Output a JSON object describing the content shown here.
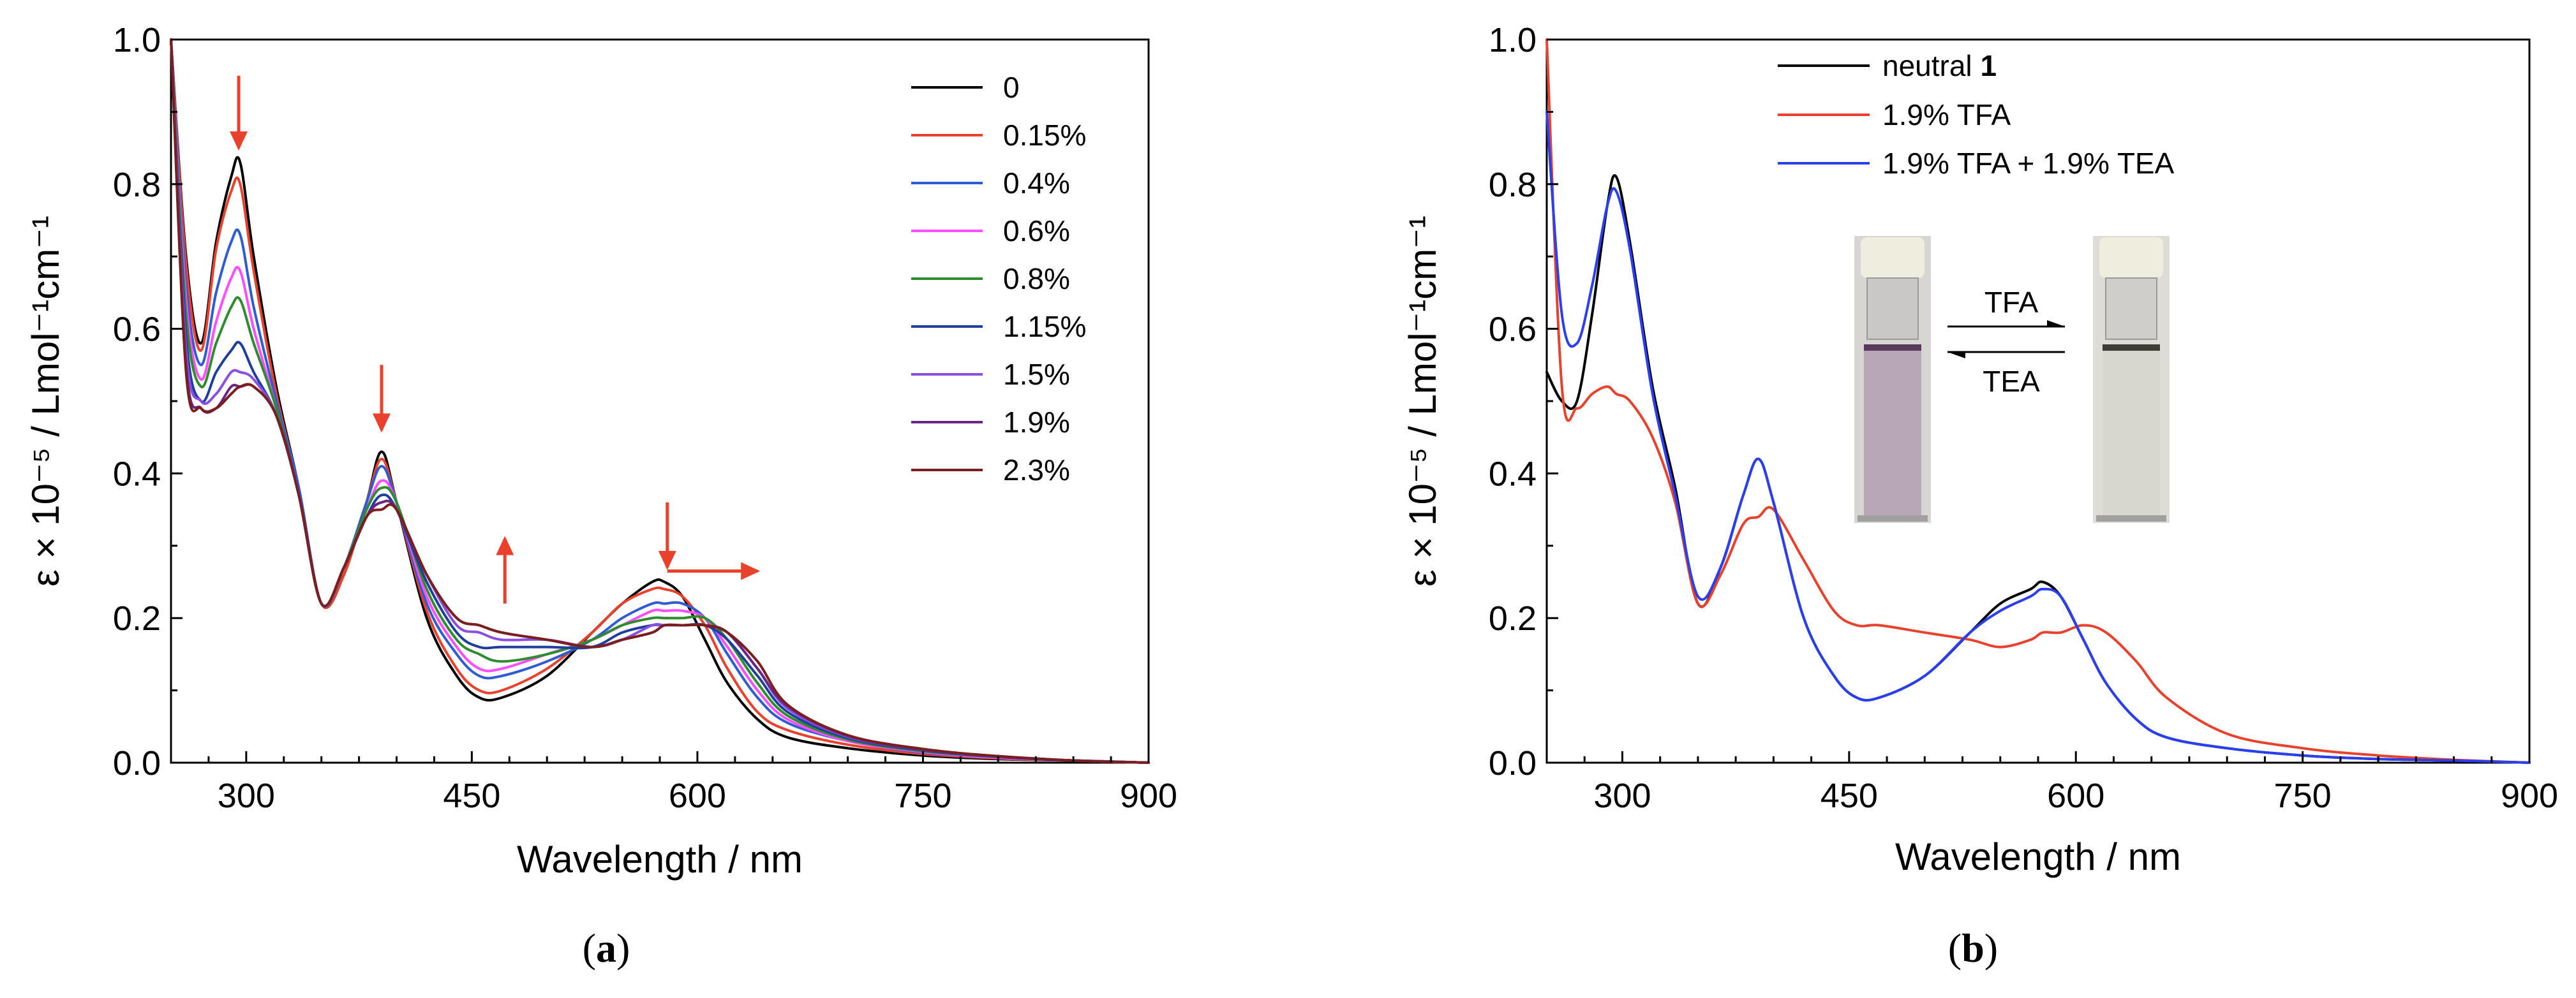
{
  "colors": {
    "axis": "#000000",
    "arrow": "#e8412c",
    "cuvette_left_liquid": "#b8a7b7",
    "cuvette_right_liquid": "#d7d6cf"
  },
  "chart_data": [
    {
      "type": "line",
      "panel_label": "a",
      "xlabel": "Wavelength / nm",
      "ylabel": "ε × 10⁻⁵ / Lmol⁻¹cm⁻¹",
      "xlim": [
        250,
        900
      ],
      "ylim": [
        0.0,
        1.0
      ],
      "xticks": [
        300,
        450,
        600,
        750,
        900
      ],
      "yticks": [
        0.0,
        0.2,
        0.4,
        0.6,
        0.8,
        1.0
      ],
      "ytick_labels": [
        "0.0",
        "0.2",
        "0.4",
        "0.6",
        "0.8",
        "1.0"
      ],
      "grid": false,
      "legend_position": "top-right",
      "x": [
        250,
        260,
        270,
        280,
        290,
        296,
        305,
        320,
        335,
        350,
        365,
        380,
        390,
        400,
        420,
        440,
        455,
        470,
        500,
        530,
        550,
        570,
        578,
        590,
        605,
        620,
        640,
        660,
        700,
        750,
        800,
        850,
        900
      ],
      "series": [
        {
          "name": "0",
          "color": "#000000",
          "values": [
            1.0,
            0.7,
            0.58,
            0.72,
            0.81,
            0.83,
            0.7,
            0.52,
            0.38,
            0.22,
            0.26,
            0.36,
            0.43,
            0.36,
            0.2,
            0.12,
            0.09,
            0.09,
            0.12,
            0.18,
            0.22,
            0.25,
            0.25,
            0.23,
            0.17,
            0.11,
            0.06,
            0.035,
            0.02,
            0.01,
            0.005,
            0.003,
            0.0
          ]
        },
        {
          "name": "0.15%",
          "color": "#e8412c",
          "values": [
            1.0,
            0.69,
            0.57,
            0.71,
            0.79,
            0.8,
            0.68,
            0.51,
            0.38,
            0.22,
            0.26,
            0.36,
            0.42,
            0.36,
            0.21,
            0.13,
            0.1,
            0.1,
            0.13,
            0.18,
            0.22,
            0.24,
            0.24,
            0.23,
            0.19,
            0.13,
            0.07,
            0.045,
            0.025,
            0.012,
            0.006,
            0.003,
            0.0
          ]
        },
        {
          "name": "0.4%",
          "color": "#2f5bd3",
          "values": [
            1.0,
            0.66,
            0.55,
            0.65,
            0.72,
            0.73,
            0.63,
            0.5,
            0.38,
            0.22,
            0.27,
            0.36,
            0.41,
            0.36,
            0.22,
            0.15,
            0.12,
            0.12,
            0.14,
            0.17,
            0.2,
            0.22,
            0.22,
            0.22,
            0.2,
            0.15,
            0.09,
            0.055,
            0.03,
            0.014,
            0.007,
            0.003,
            0.0
          ]
        },
        {
          "name": "0.6%",
          "color": "#ff4dff",
          "values": [
            1.0,
            0.64,
            0.53,
            0.61,
            0.67,
            0.68,
            0.6,
            0.49,
            0.37,
            0.22,
            0.27,
            0.35,
            0.39,
            0.36,
            0.23,
            0.16,
            0.13,
            0.13,
            0.15,
            0.17,
            0.19,
            0.21,
            0.21,
            0.21,
            0.2,
            0.16,
            0.1,
            0.06,
            0.03,
            0.015,
            0.007,
            0.003,
            0.0
          ]
        },
        {
          "name": "0.8%",
          "color": "#2e8b2e",
          "values": [
            1.0,
            0.62,
            0.52,
            0.58,
            0.63,
            0.64,
            0.58,
            0.49,
            0.37,
            0.22,
            0.27,
            0.35,
            0.38,
            0.36,
            0.24,
            0.17,
            0.15,
            0.14,
            0.15,
            0.17,
            0.19,
            0.2,
            0.2,
            0.2,
            0.2,
            0.17,
            0.11,
            0.065,
            0.032,
            0.016,
            0.008,
            0.003,
            0.0
          ]
        },
        {
          "name": "1.15%",
          "color": "#1f3f9c",
          "values": [
            1.0,
            0.59,
            0.5,
            0.54,
            0.57,
            0.58,
            0.54,
            0.48,
            0.37,
            0.22,
            0.27,
            0.34,
            0.37,
            0.35,
            0.25,
            0.18,
            0.16,
            0.16,
            0.16,
            0.16,
            0.18,
            0.19,
            0.19,
            0.19,
            0.19,
            0.17,
            0.12,
            0.07,
            0.034,
            0.017,
            0.008,
            0.003,
            0.0
          ]
        },
        {
          "name": "1.5%",
          "color": "#8a4ee0",
          "values": [
            1.0,
            0.57,
            0.5,
            0.51,
            0.54,
            0.54,
            0.53,
            0.48,
            0.37,
            0.22,
            0.27,
            0.34,
            0.36,
            0.35,
            0.26,
            0.19,
            0.18,
            0.17,
            0.17,
            0.16,
            0.17,
            0.19,
            0.19,
            0.19,
            0.19,
            0.18,
            0.13,
            0.075,
            0.036,
            0.018,
            0.009,
            0.003,
            0.0
          ]
        },
        {
          "name": "1.9%",
          "color": "#6a2585",
          "values": [
            1.0,
            0.55,
            0.49,
            0.49,
            0.52,
            0.52,
            0.52,
            0.48,
            0.37,
            0.22,
            0.27,
            0.34,
            0.36,
            0.35,
            0.26,
            0.2,
            0.19,
            0.18,
            0.17,
            0.16,
            0.17,
            0.18,
            0.19,
            0.19,
            0.19,
            0.18,
            0.13,
            0.078,
            0.037,
            0.018,
            0.009,
            0.003,
            0.0
          ]
        },
        {
          "name": "2.3%",
          "color": "#7a1e1e",
          "values": [
            1.0,
            0.54,
            0.49,
            0.49,
            0.51,
            0.52,
            0.52,
            0.48,
            0.37,
            0.22,
            0.27,
            0.34,
            0.35,
            0.35,
            0.26,
            0.2,
            0.19,
            0.18,
            0.17,
            0.16,
            0.17,
            0.18,
            0.19,
            0.19,
            0.19,
            0.18,
            0.14,
            0.08,
            0.038,
            0.019,
            0.009,
            0.003,
            0.0
          ]
        }
      ],
      "annotations": [
        {
          "kind": "arrow-down",
          "x": 295,
          "y_from": 0.95,
          "y_to": 0.85
        },
        {
          "kind": "arrow-down",
          "x": 390,
          "y_from": 0.55,
          "y_to": 0.46
        },
        {
          "kind": "arrow-up",
          "x": 472,
          "y_from": 0.22,
          "y_to": 0.31
        },
        {
          "kind": "arrow-down",
          "x": 580,
          "y_from": 0.36,
          "y_to": 0.27
        },
        {
          "kind": "arrow-right",
          "x_from": 580,
          "x_to": 640,
          "y": 0.265
        }
      ]
    },
    {
      "type": "line",
      "panel_label": "b",
      "xlabel": "Wavelength / nm",
      "ylabel": "ε × 10⁻⁵ / Lmol⁻¹cm⁻¹",
      "xlim": [
        250,
        900
      ],
      "ylim": [
        0.0,
        1.0
      ],
      "xticks": [
        300,
        450,
        600,
        750,
        900
      ],
      "yticks": [
        0.0,
        0.2,
        0.4,
        0.6,
        0.8,
        1.0
      ],
      "ytick_labels": [
        "0.0",
        "0.2",
        "0.4",
        "0.6",
        "0.8",
        "1.0"
      ],
      "grid": false,
      "legend_position": "top-left",
      "x": [
        250,
        260,
        270,
        280,
        290,
        296,
        305,
        320,
        335,
        350,
        365,
        380,
        390,
        400,
        420,
        440,
        455,
        470,
        500,
        530,
        550,
        570,
        578,
        590,
        605,
        620,
        640,
        660,
        700,
        750,
        800,
        850,
        900
      ],
      "series": [
        {
          "name_plain": "neutral ",
          "name_bold": "1",
          "color": "#000000",
          "values": [
            0.54,
            0.5,
            0.5,
            0.62,
            0.77,
            0.81,
            0.72,
            0.52,
            0.38,
            0.22,
            0.27,
            0.37,
            0.42,
            0.36,
            0.2,
            0.12,
            0.09,
            0.09,
            0.12,
            0.18,
            0.22,
            0.24,
            0.25,
            0.23,
            0.17,
            0.11,
            0.06,
            0.035,
            0.02,
            0.01,
            0.005,
            0.003,
            0.0
          ]
        },
        {
          "name_plain": "1.9% TFA",
          "name_bold": "",
          "color": "#e8412c",
          "values": [
            1.0,
            0.52,
            0.49,
            0.51,
            0.52,
            0.51,
            0.5,
            0.45,
            0.36,
            0.22,
            0.26,
            0.33,
            0.34,
            0.35,
            0.28,
            0.21,
            0.19,
            0.19,
            0.18,
            0.17,
            0.16,
            0.17,
            0.18,
            0.18,
            0.19,
            0.18,
            0.14,
            0.09,
            0.04,
            0.02,
            0.01,
            0.004,
            0.0
          ]
        },
        {
          "name_plain": "1.9% TFA + 1.9% TEA",
          "name_bold": "",
          "color": "#2a3ff0",
          "values": [
            0.9,
            0.62,
            0.58,
            0.66,
            0.77,
            0.79,
            0.71,
            0.51,
            0.37,
            0.23,
            0.27,
            0.37,
            0.42,
            0.36,
            0.2,
            0.12,
            0.09,
            0.09,
            0.12,
            0.18,
            0.21,
            0.23,
            0.24,
            0.23,
            0.17,
            0.11,
            0.06,
            0.035,
            0.02,
            0.01,
            0.005,
            0.003,
            0.0
          ]
        }
      ],
      "inset": {
        "reaction_forward": "TFA",
        "reaction_backward": "TEA"
      }
    }
  ]
}
